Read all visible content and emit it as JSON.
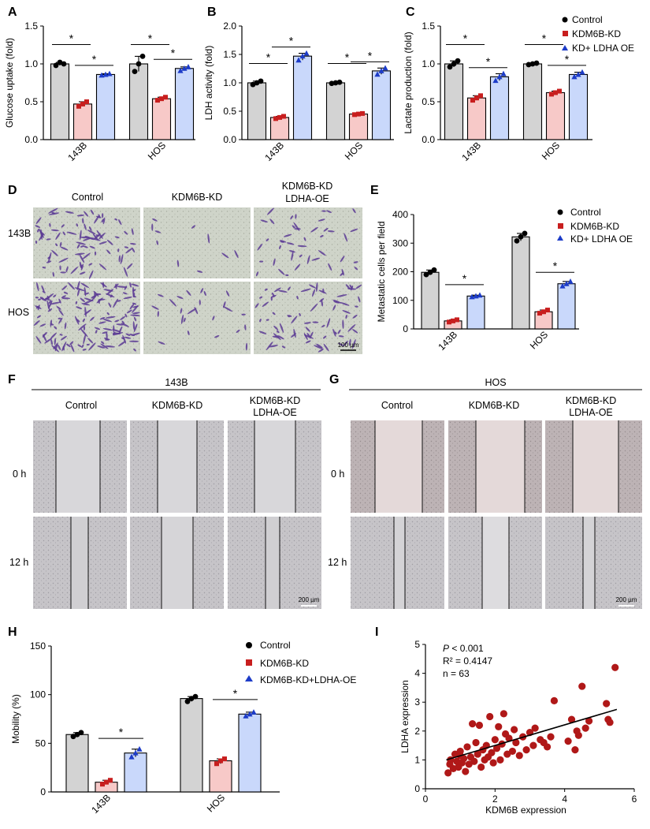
{
  "colors": {
    "control_fill": "#d3d3d3",
    "kd_fill": "#f7c9c8",
    "oe_fill": "#c9d8fb",
    "control_dot": "#000000",
    "kd_dot": "#c81e1e",
    "oe_dot": "#1d3cc8",
    "scatter": "#b01818"
  },
  "panels": {
    "A": {
      "label": "A"
    },
    "B": {
      "label": "B"
    },
    "C": {
      "label": "C"
    },
    "D": {
      "label": "D"
    },
    "E": {
      "label": "E"
    },
    "F": {
      "label": "F"
    },
    "G": {
      "label": "G"
    },
    "H": {
      "label": "H"
    },
    "I": {
      "label": "I"
    }
  },
  "legend_short": [
    "Control",
    "KDM6B-KD",
    "KD+ LDHA OE"
  ],
  "legend_h": [
    "Control",
    "KDM6B-KD",
    "KDM6B-KD+LDHA-OE"
  ],
  "panel_d": {
    "col_headers": [
      "Control",
      "KDM6B-KD",
      "KDM6B-KD",
      "LDHA-OE"
    ],
    "row_labels": [
      "143B",
      "HOS"
    ],
    "scale_bar": "100 µm"
  },
  "panel_f": {
    "title": "143B",
    "col_headers": [
      "Control",
      "KDM6B-KD",
      "KDM6B-KD",
      "LDHA-OE"
    ],
    "row_labels": [
      "0 h",
      "12 h"
    ],
    "scale_bar": "200 µm"
  },
  "panel_g": {
    "title": "HOS",
    "col_headers": [
      "Control",
      "KDM6B-KD",
      "KDM6B-KD",
      "LDHA-OE"
    ],
    "row_labels": [
      "0 h",
      "12 h"
    ],
    "scale_bar": "200 µm"
  },
  "panel_i": {
    "p_label": "P",
    "p_rest": " < 0.001",
    "r2": "R² = 0.4147",
    "n": "n = 63"
  },
  "chart_data": [
    {
      "id": "A",
      "type": "bar",
      "title": "",
      "ylabel": "Glucose uptake (fold)",
      "xlabel": "",
      "categories": [
        "143B",
        "HOS"
      ],
      "ylim": [
        0,
        1.5
      ],
      "yticks": [
        "0.0",
        "0.5",
        "1.0",
        "1.5"
      ],
      "series": [
        {
          "name": "Control",
          "values": [
            1.0,
            1.0
          ],
          "points": [
            [
              0.98,
              1.02,
              1.0
            ],
            [
              0.9,
              1.0,
              1.1
            ]
          ]
        },
        {
          "name": "KDM6B-KD",
          "values": [
            0.47,
            0.54
          ],
          "points": [
            [
              0.44,
              0.47,
              0.5
            ],
            [
              0.52,
              0.54,
              0.56
            ]
          ]
        },
        {
          "name": "KD+ LDHA OE",
          "values": [
            0.86,
            0.94
          ],
          "points": [
            [
              0.85,
              0.86,
              0.87
            ],
            [
              0.91,
              0.94,
              0.96
            ]
          ]
        }
      ],
      "sig": [
        "*",
        "*",
        "*",
        "*"
      ]
    },
    {
      "id": "B",
      "type": "bar",
      "title": "",
      "ylabel": "LDH activity (fold)",
      "xlabel": "",
      "categories": [
        "143B",
        "HOS"
      ],
      "ylim": [
        0,
        2.0
      ],
      "yticks": [
        "0.0",
        "0.5",
        "1.0",
        "1.5",
        "2.0"
      ],
      "series": [
        {
          "name": "Control",
          "values": [
            1.0,
            1.0
          ],
          "points": [
            [
              0.97,
              1.0,
              1.03
            ],
            [
              0.99,
              1.0,
              1.01
            ]
          ]
        },
        {
          "name": "KDM6B-KD",
          "values": [
            0.39,
            0.45
          ],
          "points": [
            [
              0.37,
              0.39,
              0.41
            ],
            [
              0.44,
              0.45,
              0.46
            ]
          ]
        },
        {
          "name": "KD+ LDHA OE",
          "values": [
            1.47,
            1.21
          ],
          "points": [
            [
              1.4,
              1.47,
              1.52
            ],
            [
              1.15,
              1.21,
              1.26
            ]
          ]
        }
      ],
      "sig": [
        "*",
        "*",
        "*",
        "*"
      ]
    },
    {
      "id": "C",
      "type": "bar",
      "title": "",
      "ylabel": "Lactate production (fold)",
      "xlabel": "",
      "categories": [
        "143B",
        "HOS"
      ],
      "ylim": [
        0,
        1.5
      ],
      "yticks": [
        "0.0",
        "0.5",
        "1.0",
        "1.5"
      ],
      "series": [
        {
          "name": "Control",
          "values": [
            1.0,
            1.0
          ],
          "points": [
            [
              0.96,
              1.0,
              1.04
            ],
            [
              0.99,
              1.0,
              1.01
            ]
          ]
        },
        {
          "name": "KDM6B-KD",
          "values": [
            0.55,
            0.62
          ],
          "points": [
            [
              0.52,
              0.55,
              0.58
            ],
            [
              0.6,
              0.62,
              0.64
            ]
          ]
        },
        {
          "name": "KD+ LDHA OE",
          "values": [
            0.83,
            0.86
          ],
          "points": [
            [
              0.78,
              0.83,
              0.87
            ],
            [
              0.83,
              0.86,
              0.89
            ]
          ]
        }
      ],
      "sig": [
        "*",
        "*",
        "*",
        "*"
      ]
    },
    {
      "id": "E",
      "type": "bar",
      "title": "",
      "ylabel": "Metastatic cells per field",
      "xlabel": "",
      "categories": [
        "143B",
        "HOS"
      ],
      "ylim": [
        0,
        400
      ],
      "yticks": [
        "0",
        "100",
        "200",
        "300",
        "400"
      ],
      "series": [
        {
          "name": "Control",
          "values": [
            198,
            322
          ],
          "points": [
            [
              190,
              198,
              206
            ],
            [
              308,
              322,
              334
            ]
          ]
        },
        {
          "name": "KDM6B-KD",
          "values": [
            28,
            60
          ],
          "points": [
            [
              24,
              28,
              32
            ],
            [
              55,
              60,
              66
            ]
          ]
        },
        {
          "name": "KD+ LDHA OE",
          "values": [
            115,
            158
          ],
          "points": [
            [
              112,
              115,
              118
            ],
            [
              150,
              158,
              166
            ]
          ]
        }
      ],
      "sig": [
        "*",
        "*"
      ]
    },
    {
      "id": "H",
      "type": "bar",
      "title": "",
      "ylabel": "Mobility (%)",
      "xlabel": "",
      "categories": [
        "143B",
        "HOS"
      ],
      "ylim": [
        0,
        150
      ],
      "yticks": [
        "0",
        "50",
        "100",
        "150"
      ],
      "series": [
        {
          "name": "Control",
          "values": [
            59,
            96
          ],
          "points": [
            [
              57,
              59,
              61
            ],
            [
              93,
              96,
              98
            ]
          ]
        },
        {
          "name": "KDM6B-KD",
          "values": [
            10,
            32
          ],
          "points": [
            [
              8,
              10,
              12
            ],
            [
              29,
              32,
              34
            ]
          ]
        },
        {
          "name": "KDM6B-KD+LDHA-OE",
          "values": [
            40,
            80
          ],
          "points": [
            [
              36,
              40,
              44
            ],
            [
              78,
              80,
              82
            ]
          ]
        }
      ],
      "sig": [
        "*",
        "*"
      ]
    },
    {
      "id": "I",
      "type": "scatter",
      "title": "",
      "xlabel": "KDM6B expression",
      "ylabel": "LDHA expression",
      "xlim": [
        0,
        6
      ],
      "ylim": [
        0,
        5
      ],
      "xticks": [
        "0",
        "2",
        "4",
        "6"
      ],
      "yticks": [
        "0",
        "1",
        "2",
        "3",
        "4",
        "5"
      ],
      "fit": {
        "x": [
          0.6,
          5.5
        ],
        "y": [
          1.0,
          2.75
        ]
      },
      "points": [
        [
          0.65,
          0.55
        ],
        [
          0.7,
          0.85
        ],
        [
          0.72,
          1.0
        ],
        [
          0.8,
          0.7
        ],
        [
          0.85,
          1.2
        ],
        [
          0.9,
          0.95
        ],
        [
          0.95,
          0.75
        ],
        [
          1.0,
          1.3
        ],
        [
          1.05,
          0.9
        ],
        [
          1.1,
          1.05
        ],
        [
          1.15,
          0.6
        ],
        [
          1.2,
          1.45
        ],
        [
          1.25,
          0.85
        ],
        [
          1.3,
          1.1
        ],
        [
          1.35,
          2.25
        ],
        [
          1.4,
          0.95
        ],
        [
          1.45,
          1.6
        ],
        [
          1.5,
          1.2
        ],
        [
          1.55,
          2.2
        ],
        [
          1.6,
          0.75
        ],
        [
          1.65,
          1.35
        ],
        [
          1.7,
          1.0
        ],
        [
          1.75,
          1.5
        ],
        [
          1.8,
          1.1
        ],
        [
          1.85,
          2.5
        ],
        [
          1.9,
          1.25
        ],
        [
          1.95,
          0.9
        ],
        [
          2.0,
          1.7
        ],
        [
          2.05,
          1.4
        ],
        [
          2.1,
          2.15
        ],
        [
          2.15,
          1.0
        ],
        [
          2.2,
          1.55
        ],
        [
          2.25,
          2.6
        ],
        [
          2.3,
          1.9
        ],
        [
          2.35,
          1.2
        ],
        [
          2.4,
          1.75
        ],
        [
          2.5,
          1.3
        ],
        [
          2.55,
          2.05
        ],
        [
          2.6,
          1.6
        ],
        [
          2.7,
          1.15
        ],
        [
          2.8,
          1.8
        ],
        [
          2.9,
          1.35
        ],
        [
          3.0,
          1.95
        ],
        [
          3.1,
          1.5
        ],
        [
          3.15,
          2.1
        ],
        [
          3.3,
          1.7
        ],
        [
          3.4,
          1.6
        ],
        [
          3.5,
          1.45
        ],
        [
          3.6,
          1.8
        ],
        [
          3.7,
          3.05
        ],
        [
          4.1,
          1.65
        ],
        [
          4.2,
          2.4
        ],
        [
          4.3,
          1.35
        ],
        [
          4.35,
          2.0
        ],
        [
          4.4,
          1.85
        ],
        [
          4.5,
          3.55
        ],
        [
          4.6,
          2.1
        ],
        [
          4.7,
          2.35
        ],
        [
          5.2,
          2.95
        ],
        [
          5.25,
          2.4
        ],
        [
          5.3,
          2.3
        ],
        [
          5.45,
          4.2
        ],
        [
          1.0,
          1.15
        ]
      ]
    }
  ]
}
